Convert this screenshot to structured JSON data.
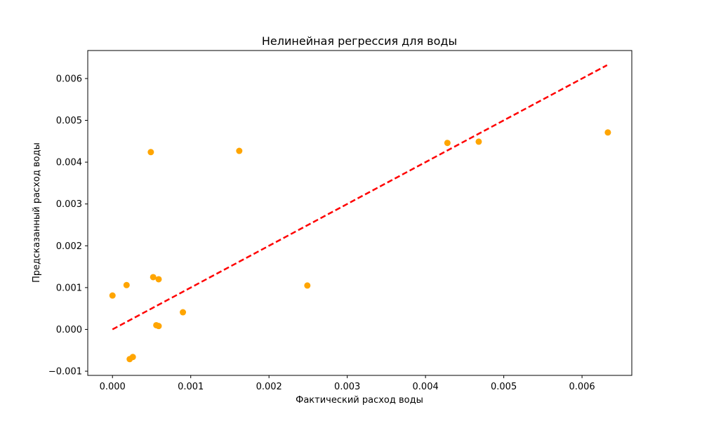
{
  "chart_data": {
    "type": "scatter",
    "title": "Нелинейная регрессия для воды",
    "xlabel": "Фактический расход воды",
    "ylabel": "Предсказанный расход воды",
    "xlim": [
      -0.000316,
      0.006636
    ],
    "ylim": [
      -0.0011,
      0.00667
    ],
    "x_ticks": [
      0.0,
      0.001,
      0.002,
      0.003,
      0.004,
      0.005,
      0.006
    ],
    "y_ticks": [
      -0.001,
      0.0,
      0.001,
      0.002,
      0.003,
      0.004,
      0.005,
      0.006
    ],
    "x_tick_labels": [
      "0.000",
      "0.001",
      "0.002",
      "0.003",
      "0.004",
      "0.005",
      "0.006"
    ],
    "y_tick_labels": [
      "−0.001",
      "0.000",
      "0.001",
      "0.002",
      "0.003",
      "0.004",
      "0.005",
      "0.006"
    ],
    "grid": false,
    "point_color": "#FFA500",
    "line_color": "#FF0000",
    "points": [
      {
        "x": 0.0,
        "y": 0.00081
      },
      {
        "x": 0.00018,
        "y": 0.00106
      },
      {
        "x": 0.00022,
        "y": -0.00071
      },
      {
        "x": 0.00026,
        "y": -0.00066
      },
      {
        "x": 0.00049,
        "y": 0.00424
      },
      {
        "x": 0.00052,
        "y": 0.00125
      },
      {
        "x": 0.00056,
        "y": 0.0001
      },
      {
        "x": 0.00059,
        "y": 0.0012
      },
      {
        "x": 0.00059,
        "y": 8e-05
      },
      {
        "x": 0.0009,
        "y": 0.00041
      },
      {
        "x": 0.00162,
        "y": 0.00427
      },
      {
        "x": 0.00249,
        "y": 0.00105
      },
      {
        "x": 0.00428,
        "y": 0.00446
      },
      {
        "x": 0.00468,
        "y": 0.00449
      },
      {
        "x": 0.00633,
        "y": 0.00471
      }
    ],
    "reference_line": {
      "style": "dashed",
      "x": [
        0.0,
        0.00632
      ],
      "y": [
        0.0,
        0.00632
      ]
    }
  }
}
